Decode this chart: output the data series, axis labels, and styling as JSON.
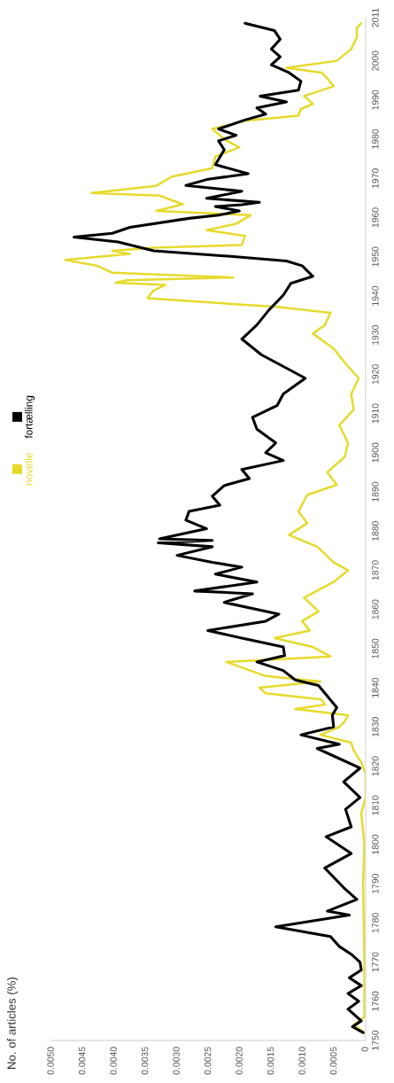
{
  "chart_data": {
    "type": "line",
    "annotations": [
      "No. of articles (%)"
    ],
    "legend": "left",
    "ylim": [
      1750,
      2011
    ],
    "yticks": [
      1750,
      1760,
      1770,
      1780,
      1790,
      1800,
      1810,
      1820,
      1830,
      1840,
      1850,
      1860,
      1870,
      1880,
      1890,
      1900,
      1910,
      1920,
      1930,
      1940,
      1950,
      1960,
      1970,
      1980,
      1990,
      2000,
      2011
    ],
    "xlim": [
      0.005,
      0
    ],
    "xticks": [
      {
        "value": 0,
        "label": "0"
      },
      {
        "value": 0.0005,
        "label": "0.0005"
      },
      {
        "value": 0.001,
        "label": "0.0010"
      },
      {
        "value": 0.0015,
        "label": "0.0015"
      },
      {
        "value": 0.002,
        "label": "0.0020"
      },
      {
        "value": 0.0025,
        "label": "0.0025"
      },
      {
        "value": 0.003,
        "label": "0.0030"
      },
      {
        "value": 0.0035,
        "label": "0.0035"
      },
      {
        "value": 0.004,
        "label": "0.0040"
      },
      {
        "value": 0.0045,
        "label": "0.0045"
      },
      {
        "value": 0.005,
        "label": "0.0050"
      }
    ],
    "series": [
      {
        "name": "novelle",
        "color": "#e6da2c",
        "values": [
          1752,
          1754,
          1756,
          1770,
          1790,
          1800,
          1808,
          1812,
          1818,
          1821,
          1824,
          1826,
          1828,
          1830,
          1831.5,
          1833,
          1834.6,
          1835.7,
          1837,
          1838.6,
          1840,
          1841.6,
          1843,
          1846.6,
          1848,
          1850.4,
          1852.7,
          1854.6,
          1857,
          1859.5,
          1863,
          1867,
          1870,
          1872,
          1876,
          1879,
          1882,
          1885,
          1889.2,
          1891.8,
          1895,
          1899,
          1902.5,
          1907,
          1911,
          1915,
          1919,
          1922.9,
          1926.6,
          1930.4,
          1932.6,
          1935.7,
          1937.2,
          1939.4,
          1941.3,
          1942.8,
          1943.4,
          1944,
          1944.7,
          1945.9,
          1947.7,
          1949.2,
          1950.7,
          1951.5,
          1952.3,
          1953,
          1955.3,
          1956.8,
          1958.4,
          1960.6,
          1961.7,
          1963.4,
          1965.6,
          1966.3,
          1968.1,
          1970.4,
          1972.6,
          1975.6,
          1977.9,
          1980,
          1982.6,
          1984.7,
          1986,
          1987.7,
          1989,
          1991,
          1993.5,
          1995.5,
          1997,
          1998.2,
          2000,
          2003,
          2006,
          2008.4,
          2009.6
        ],
        "x": [
          2e-05,
          0.00019,
          2e-05,
          2e-05,
          4e-05,
          2e-05,
          7e-05,
          0,
          0,
          7e-05,
          0.00019,
          0.00023,
          0.00072,
          0.00042,
          0.00033,
          0.00028,
          0.00112,
          0.00065,
          0.0007,
          0.00159,
          0.00169,
          0.00072,
          0.00159,
          0.00222,
          0.00056,
          0.00084,
          0.00145,
          0.00089,
          0.00101,
          0.00075,
          0.00098,
          0.00051,
          0.00028,
          0.00051,
          0.00077,
          0.00122,
          0.00093,
          0.00107,
          0.00093,
          0.00046,
          0.00061,
          0.00033,
          0.00028,
          0.00042,
          0.00019,
          0.00023,
          0.00011,
          0.00033,
          0.00051,
          0.00084,
          0.00065,
          0.00056,
          0.00141,
          0.00347,
          0.00338,
          0.00319,
          0.00398,
          0.0038,
          0.00211,
          0.00403,
          0.00427,
          0.00478,
          0.00375,
          0.00403,
          0.00337,
          0.00197,
          0.00192,
          0.00253,
          0.00206,
          0.00183,
          0.00333,
          0.00291,
          0.00328,
          0.00436,
          0.00333,
          0.00309,
          0.00244,
          0.00239,
          0.00201,
          0.00225,
          0.00244,
          0.00192,
          0.00107,
          0.00103,
          0.00084,
          0.00098,
          0.00051,
          0.00061,
          0.0007,
          0.00126,
          0.00046,
          0.00023,
          0.00014,
          0.00014,
          7e-05
        ]
      },
      {
        "name": "fortælling",
        "color": "#000000",
        "values": [
          1752,
          1753.5,
          1755,
          1758,
          1760,
          1762,
          1764,
          1766,
          1768,
          1770,
          1772,
          1774,
          1776.5,
          1779,
          1782,
          1783,
          1786,
          1789,
          1794,
          1797.7,
          1802,
          1804.5,
          1809,
          1812,
          1816,
          1819.5,
          1822.6,
          1824.5,
          1825.6,
          1828,
          1830,
          1833,
          1835,
          1840.6,
          1842,
          1844.4,
          1846.6,
          1848.2,
          1850.4,
          1852.7,
          1854.6,
          1857,
          1858.8,
          1861.8,
          1864,
          1864.7,
          1867,
          1869,
          1870.8,
          1872,
          1873.8,
          1876,
          1877,
          1877.6,
          1878,
          1880.6,
          1882.8,
          1885,
          1886.6,
          1888.9,
          1891.6,
          1893.4,
          1895.7,
          1898,
          1900,
          1902.5,
          1906,
          1909,
          1912,
          1915,
          1919,
          1922,
          1925,
          1929,
          1932.6,
          1936.4,
          1940.2,
          1943.2,
          1945,
          1947.7,
          1948.9,
          1950,
          1951.5,
          1953.8,
          1955,
          1956,
          1957.5,
          1959.8,
          1960.6,
          1961.7,
          1962.8,
          1963.3,
          1963.9,
          1964.9,
          1966.7,
          1968.2,
          1969.7,
          1971.2,
          1973.5,
          1977.3,
          1979.6,
          1981,
          1982.6,
          1984.9,
          1986.4,
          1988,
          1989.5,
          1991,
          1992.5,
          1994.8,
          1997,
          1999,
          2001,
          2003,
          2005.5,
          2007.7,
          2009.6
        ],
        "x": [
          4e-05,
          0.00021,
          7e-05,
          0.00028,
          0.00011,
          0.00028,
          7e-05,
          0.00026,
          7e-05,
          9e-05,
          0.00023,
          0.00042,
          0.00056,
          0.00143,
          0.00026,
          0.00061,
          0.00014,
          0.00035,
          0.00065,
          0.00023,
          0.00063,
          0.00023,
          0.00032,
          9e-05,
          0.00035,
          9e-05,
          0.00051,
          0.00077,
          0.00042,
          0.00103,
          0.00051,
          0.00053,
          0.00046,
          0.00075,
          0.00112,
          0.00131,
          0.00173,
          0.00129,
          0.00131,
          0.00197,
          0.00251,
          0.00159,
          0.00138,
          0.00225,
          0.0018,
          0.00272,
          0.00173,
          0.00239,
          0.00197,
          0.00244,
          0.003,
          0.00244,
          0.0033,
          0.00244,
          0.00328,
          0.00253,
          0.00286,
          0.00281,
          0.00232,
          0.00244,
          0.00225,
          0.00185,
          0.00197,
          0.00131,
          0.00159,
          0.00143,
          0.00173,
          0.0018,
          0.00141,
          0.00131,
          0.00096,
          0.00131,
          0.00166,
          0.00197,
          0.00173,
          0.00154,
          0.00131,
          0.00119,
          0.00084,
          0.00101,
          0.00126,
          0.00206,
          0.00337,
          0.00394,
          0.00464,
          0.00403,
          0.00375,
          0.00281,
          0.00234,
          0.00201,
          0.00239,
          0.00197,
          0.00169,
          0.00253,
          0.00197,
          0.00286,
          0.00253,
          0.00187,
          0.00239,
          0.00225,
          0.00234,
          0.00206,
          0.00234,
          0.00192,
          0.00159,
          0.00173,
          0.00126,
          0.00168,
          0.00107,
          0.00103,
          0.00122,
          0.0015,
          0.00136,
          0.0015,
          0.00136,
          0.00145,
          0.00192
        ]
      }
    ]
  }
}
